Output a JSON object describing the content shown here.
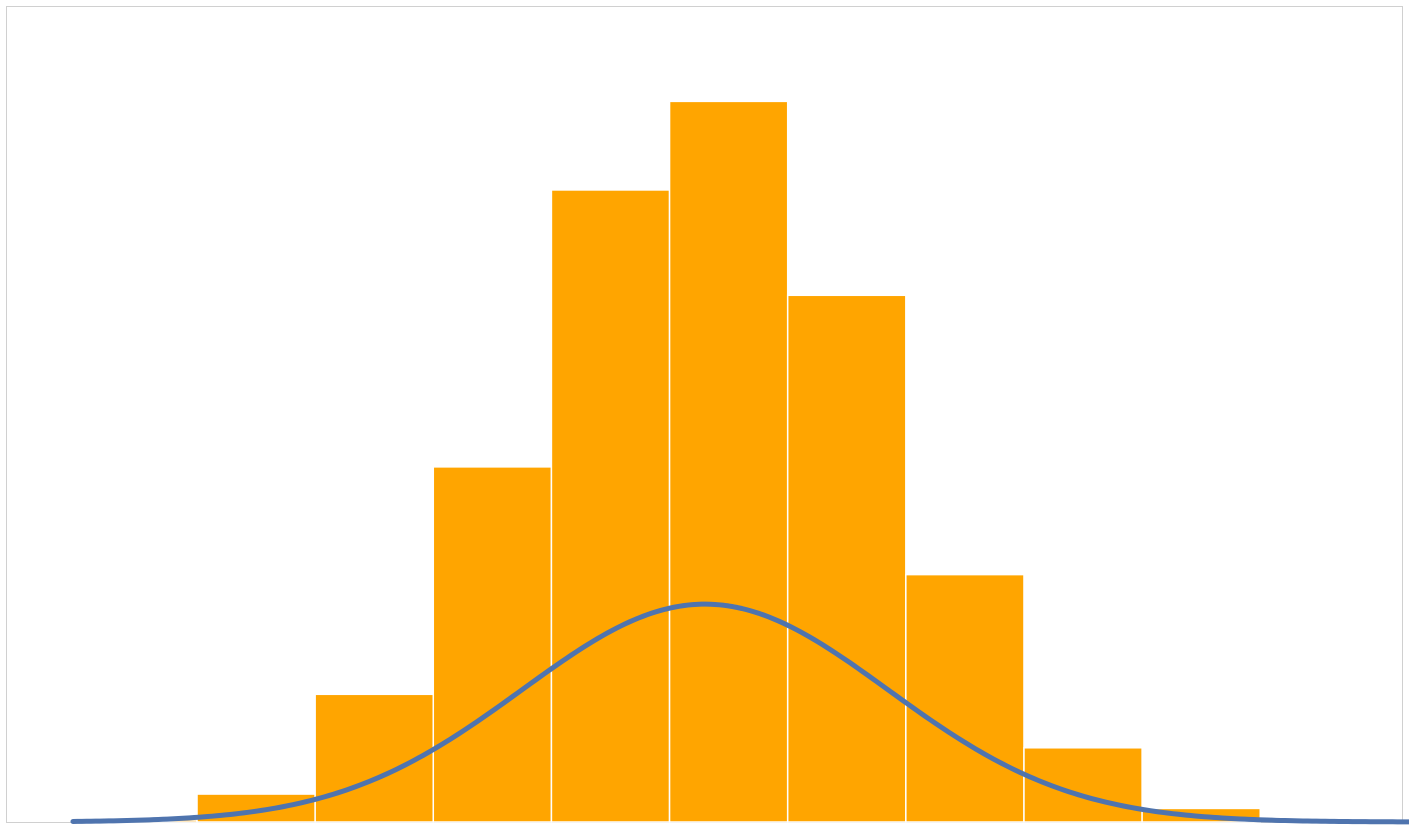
{
  "chart_data": {
    "type": "bar",
    "subtype": "histogram-with-normal-curve",
    "title": "",
    "xlabel": "",
    "ylabel": "",
    "bins": [
      {
        "index": 0,
        "value": 0.25
      },
      {
        "index": 1,
        "value": 3.5
      },
      {
        "index": 2,
        "value": 16.0
      },
      {
        "index": 3,
        "value": 44.5
      },
      {
        "index": 4,
        "value": 79.2
      },
      {
        "index": 5,
        "value": 90.3
      },
      {
        "index": 6,
        "value": 66.0
      },
      {
        "index": 7,
        "value": 31.0
      },
      {
        "index": 8,
        "value": 9.3
      },
      {
        "index": 9,
        "value": 1.7
      }
    ],
    "bin_range": [
      0,
      10
    ],
    "x_range": [
      -0.6,
      11.2
    ],
    "ylim": [
      0,
      102
    ],
    "curve": {
      "type": "normal",
      "mean": 5.3,
      "sd": 1.55,
      "peak": 27.3
    },
    "grid": false,
    "legend": "none",
    "colors": {
      "bars": "#FFA500",
      "bar_edges": "#ffffff",
      "curve": "#4F74AE",
      "frame": "#d0d0d0"
    }
  }
}
